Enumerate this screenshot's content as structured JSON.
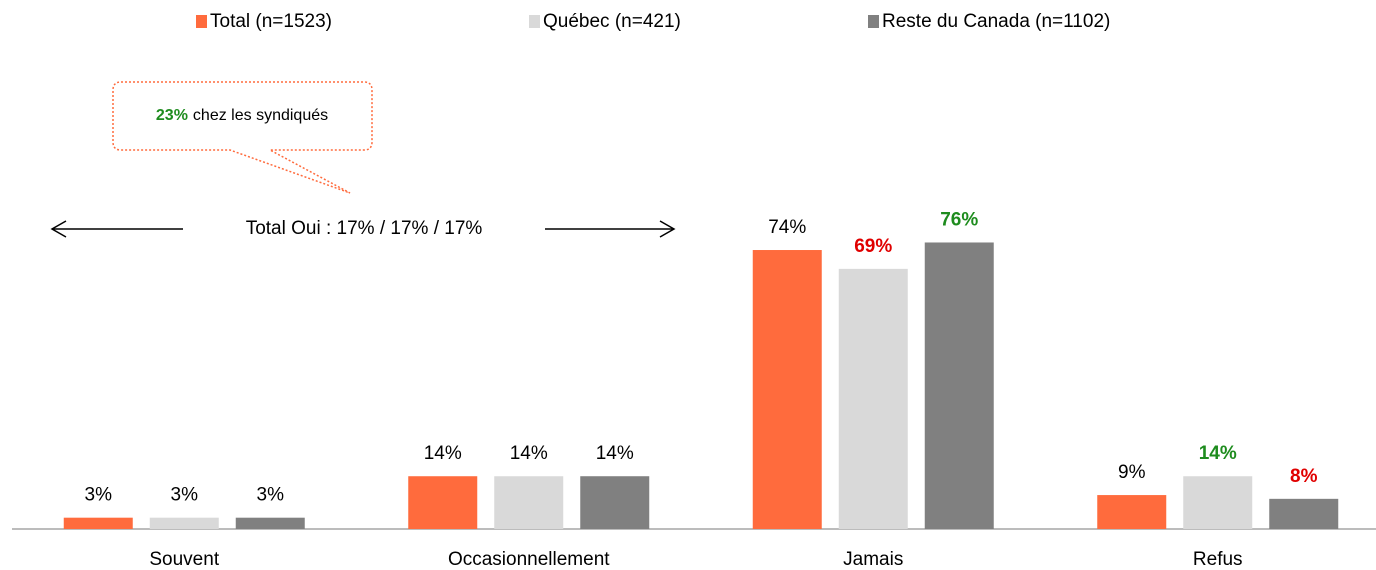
{
  "chart_data": {
    "type": "bar",
    "categories": [
      "Souvent",
      "Occasionnellement",
      "Jamais",
      "Refus"
    ],
    "series": [
      {
        "name": "Total (n=1523)",
        "color": "#ff6b3d",
        "values": [
          3,
          14,
          74,
          9
        ],
        "value_labels": [
          "3%",
          "14%",
          "74%",
          "9%"
        ],
        "label_colors": [
          "#000000",
          "#000000",
          "#000000",
          "#000000"
        ]
      },
      {
        "name": "Québec (n=421)",
        "color": "#d9d9d9",
        "values": [
          3,
          14,
          69,
          14
        ],
        "value_labels": [
          "3%",
          "14%",
          "69%",
          "14%"
        ],
        "label_colors": [
          "#000000",
          "#000000",
          "#e00000",
          "#1e8c1e"
        ]
      },
      {
        "name": "Reste du Canada (n=1102)",
        "color": "#808080",
        "values": [
          3,
          14,
          76,
          8
        ],
        "value_labels": [
          "3%",
          "14%",
          "76%",
          "8%"
        ],
        "label_colors": [
          "#000000",
          "#000000",
          "#1e8c1e",
          "#e00000"
        ]
      }
    ],
    "ylim": [
      0,
      100
    ],
    "annotations": [
      {
        "text": "Total Oui : 17% / 17% / 17%"
      },
      {
        "highlight": "23%",
        "text": "chez les syndiqués",
        "highlight_color": "#1e8c1e"
      }
    ]
  }
}
